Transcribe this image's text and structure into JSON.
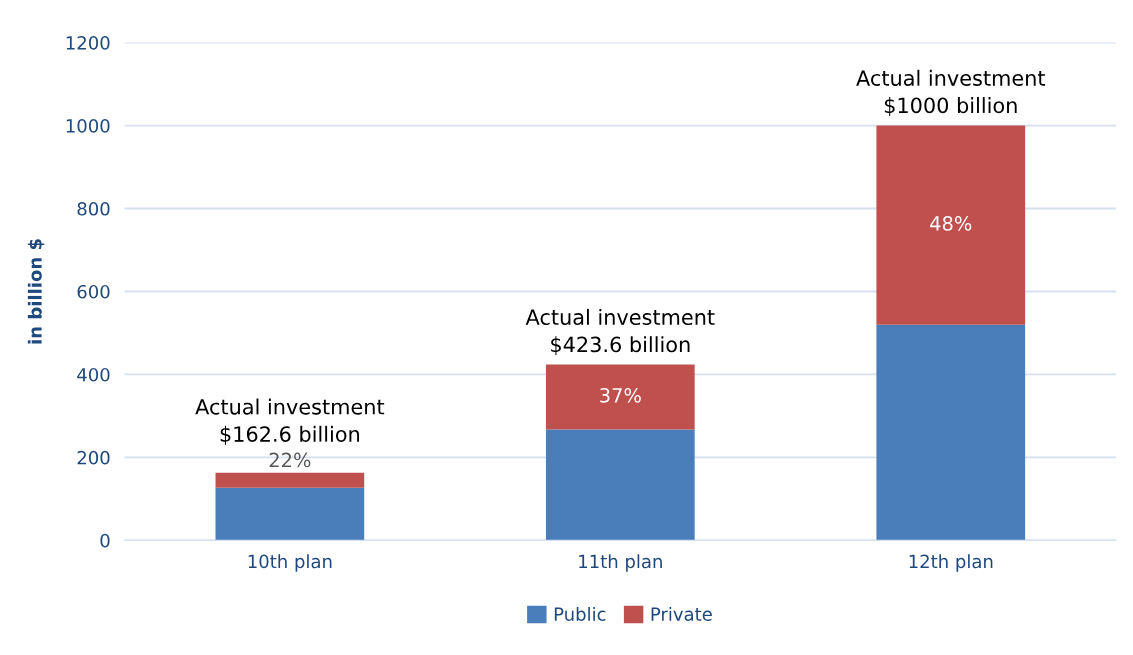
{
  "chart_data": {
    "type": "bar",
    "stacked": true,
    "ylabel": "in billion $",
    "categories": [
      "10th plan",
      "11th plan",
      "12th plan"
    ],
    "series": [
      {
        "name": "Public",
        "color": "#4a7ebb",
        "values": [
          127,
          267,
          520
        ]
      },
      {
        "name": "Private",
        "color": "#c0504d",
        "values": [
          36,
          157,
          480
        ]
      }
    ],
    "ylim": [
      0,
      1200
    ],
    "yticks": [
      0,
      200,
      400,
      600,
      800,
      1000,
      1200
    ],
    "grid": "y",
    "legend": "bottom",
    "annotations": [
      {
        "text": "Actual investment\n$162.6 billion",
        "x": "10th plan",
        "y": 162.6
      },
      {
        "text": "Actual investment\n$423.6 billion",
        "x": "11th plan",
        "y": 423.6
      },
      {
        "text": "Actual investment\n$1000 billion",
        "x": "12th plan",
        "y": 1000
      },
      "22%",
      "37%",
      "48%"
    ]
  }
}
